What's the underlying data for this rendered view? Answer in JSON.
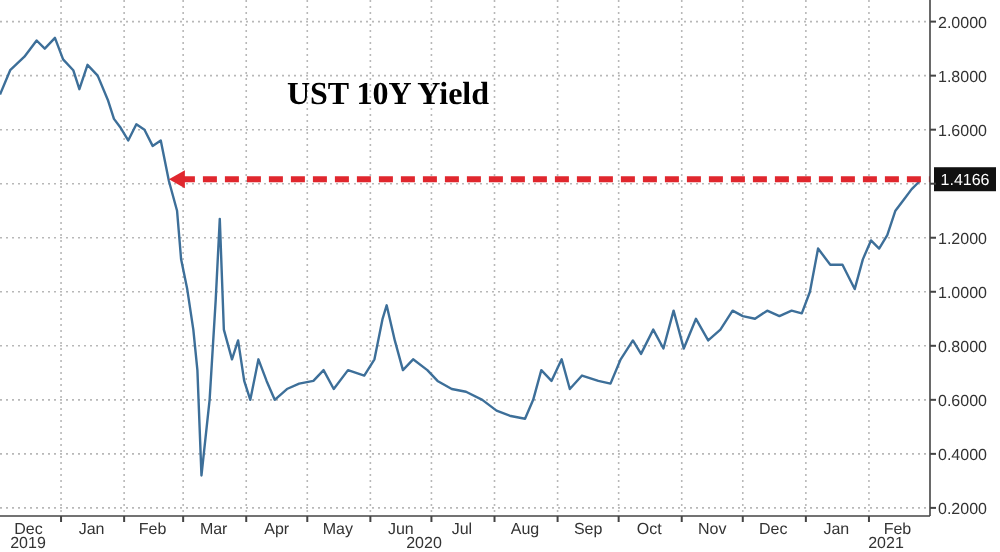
{
  "chart_data": {
    "type": "line",
    "title": "UST 10Y Yield",
    "x": [
      "2019-12-02",
      "2019-12-07",
      "2019-12-14",
      "2019-12-20",
      "2019-12-24",
      "2019-12-29",
      "2020-01-02",
      "2020-01-07",
      "2020-01-10",
      "2020-01-14",
      "2020-01-19",
      "2020-01-24",
      "2020-01-27",
      "2020-01-30",
      "2020-02-03",
      "2020-02-07",
      "2020-02-11",
      "2020-02-15",
      "2020-02-19",
      "2020-02-23",
      "2020-02-27",
      "2020-02-29",
      "2020-03-03",
      "2020-03-06",
      "2020-03-08",
      "2020-03-10",
      "2020-03-14",
      "2020-03-17",
      "2020-03-19",
      "2020-03-21",
      "2020-03-25",
      "2020-03-28",
      "2020-03-31",
      "2020-04-03",
      "2020-04-07",
      "2020-04-11",
      "2020-04-15",
      "2020-04-21",
      "2020-04-27",
      "2020-05-04",
      "2020-05-09",
      "2020-05-14",
      "2020-05-21",
      "2020-05-29",
      "2020-06-03",
      "2020-06-07",
      "2020-06-09",
      "2020-06-13",
      "2020-06-17",
      "2020-06-22",
      "2020-06-29",
      "2020-07-04",
      "2020-07-11",
      "2020-07-18",
      "2020-07-26",
      "2020-08-02",
      "2020-08-09",
      "2020-08-16",
      "2020-08-20",
      "2020-08-24",
      "2020-08-29",
      "2020-09-03",
      "2020-09-07",
      "2020-09-13",
      "2020-09-21",
      "2020-09-27",
      "2020-10-02",
      "2020-10-08",
      "2020-10-12",
      "2020-10-18",
      "2020-10-23",
      "2020-10-28",
      "2020-11-02",
      "2020-11-08",
      "2020-11-14",
      "2020-11-20",
      "2020-11-26",
      "2020-12-01",
      "2020-12-07",
      "2020-12-13",
      "2020-12-19",
      "2020-12-25",
      "2020-12-30",
      "2021-01-03",
      "2021-01-07",
      "2021-01-13",
      "2021-01-19",
      "2021-01-25",
      "2021-01-29",
      "2021-02-02",
      "2021-02-06",
      "2021-02-10",
      "2021-02-14",
      "2021-02-18",
      "2021-02-22",
      "2021-02-26"
    ],
    "series": [
      {
        "color": "#3d6f99",
        "values": [
          1.73,
          1.82,
          1.87,
          1.93,
          1.9,
          1.94,
          1.86,
          1.82,
          1.75,
          1.84,
          1.8,
          1.71,
          1.64,
          1.61,
          1.56,
          1.62,
          1.6,
          1.54,
          1.56,
          1.41,
          1.3,
          1.12,
          1.01,
          0.86,
          0.71,
          0.32,
          0.6,
          0.97,
          1.27,
          0.86,
          0.75,
          0.82,
          0.67,
          0.6,
          0.75,
          0.67,
          0.6,
          0.64,
          0.66,
          0.67,
          0.71,
          0.64,
          0.71,
          0.69,
          0.75,
          0.9,
          0.95,
          0.82,
          0.71,
          0.75,
          0.71,
          0.67,
          0.64,
          0.63,
          0.6,
          0.56,
          0.54,
          0.53,
          0.6,
          0.71,
          0.67,
          0.75,
          0.64,
          0.69,
          0.67,
          0.66,
          0.75,
          0.82,
          0.77,
          0.86,
          0.79,
          0.93,
          0.79,
          0.9,
          0.82,
          0.86,
          0.93,
          0.91,
          0.9,
          0.93,
          0.91,
          0.93,
          0.92,
          1.0,
          1.16,
          1.1,
          1.1,
          1.01,
          1.12,
          1.19,
          1.16,
          1.21,
          1.3,
          1.34,
          1.38,
          1.41
        ]
      }
    ],
    "xlim": [
      "2019-12-02",
      "2021-03-03"
    ],
    "ylim": [
      0.17,
      2.08
    ],
    "xticks": [
      {
        "value": "2019-12-16",
        "label": "Dec"
      },
      {
        "value": "2020-01-01",
        "label": null
      },
      {
        "value": "2020-01-16",
        "label": "Jan"
      },
      {
        "value": "2020-02-01",
        "label": null
      },
      {
        "value": "2020-02-15",
        "label": "Feb"
      },
      {
        "value": "2020-03-01",
        "label": null
      },
      {
        "value": "2020-03-16",
        "label": "Mar"
      },
      {
        "value": "2020-04-01",
        "label": null
      },
      {
        "value": "2020-04-16",
        "label": "Apr"
      },
      {
        "value": "2020-05-01",
        "label": null
      },
      {
        "value": "2020-05-16",
        "label": "May"
      },
      {
        "value": "2020-06-01",
        "label": null
      },
      {
        "value": "2020-06-16",
        "label": "Jun"
      },
      {
        "value": "2020-07-01",
        "label": null
      },
      {
        "value": "2020-07-16",
        "label": "Jul"
      },
      {
        "value": "2020-08-01",
        "label": null
      },
      {
        "value": "2020-08-16",
        "label": "Aug"
      },
      {
        "value": "2020-09-01",
        "label": null
      },
      {
        "value": "2020-09-16",
        "label": "Sep"
      },
      {
        "value": "2020-10-01",
        "label": null
      },
      {
        "value": "2020-10-16",
        "label": "Oct"
      },
      {
        "value": "2020-11-01",
        "label": null
      },
      {
        "value": "2020-11-16",
        "label": "Nov"
      },
      {
        "value": "2020-12-01",
        "label": null
      },
      {
        "value": "2020-12-16",
        "label": "Dec"
      },
      {
        "value": "2021-01-01",
        "label": null
      },
      {
        "value": "2021-01-16",
        "label": "Jan"
      },
      {
        "value": "2021-02-01",
        "label": null
      },
      {
        "value": "2021-02-15",
        "label": "Feb"
      }
    ],
    "yticks": [
      {
        "value": 0.2,
        "label": "0.2000"
      },
      {
        "value": 0.4,
        "label": "0.4000"
      },
      {
        "value": 0.6,
        "label": "0.6000"
      },
      {
        "value": 0.8,
        "label": "0.8000"
      },
      {
        "value": 1.0,
        "label": "1.0000"
      },
      {
        "value": 1.2,
        "label": "1.2000"
      },
      {
        "value": 1.4,
        "label": null
      },
      {
        "value": 1.6,
        "label": "1.6000"
      },
      {
        "value": 1.8,
        "label": "1.8000"
      },
      {
        "value": 2.0,
        "label": "2.0000"
      }
    ],
    "grid": true,
    "ref_lines": [
      {
        "axis": "y",
        "value": 1.4166,
        "label": "1.4166",
        "color": "#e0272e",
        "line_style": "dashed"
      }
    ],
    "annotations": [
      "2019",
      "2020",
      "2021"
    ]
  }
}
